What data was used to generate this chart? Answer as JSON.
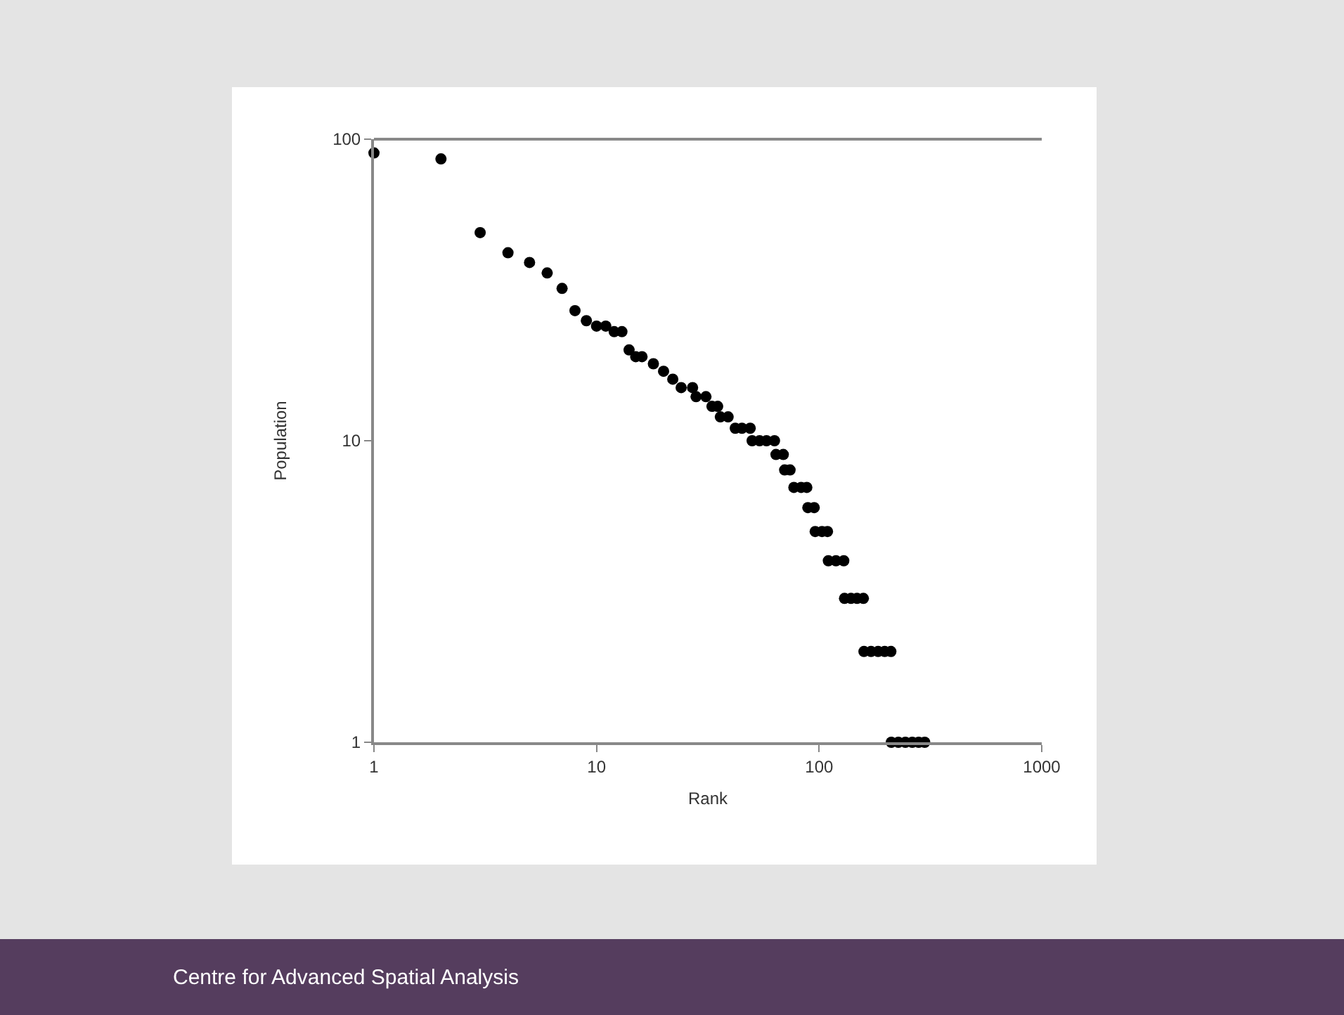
{
  "chart_data": {
    "type": "scatter",
    "xlabel": "Rank",
    "ylabel": "Population",
    "log": "xy",
    "grid": false,
    "marker": "circle",
    "xlim": [
      1,
      1000
    ],
    "xticks": [
      1,
      10,
      100,
      1000
    ],
    "ylim": [
      1,
      100
    ],
    "yticks": [
      1,
      10,
      100
    ],
    "annotations": [
      "Centre for Advanced Spatial Analysis"
    ],
    "series": [
      {
        "color": "#000000",
        "x": [
          1,
          2,
          3,
          4,
          5,
          6,
          7,
          8,
          9,
          10,
          11,
          12,
          13,
          14,
          15,
          16,
          18,
          20,
          22,
          24,
          27,
          28,
          31,
          33,
          35,
          36,
          39,
          42,
          45,
          49,
          50,
          54,
          58,
          63,
          64,
          69,
          70,
          74,
          77,
          83,
          88,
          89,
          95,
          96,
          103,
          109,
          110,
          119,
          129,
          130,
          139,
          148,
          158,
          159,
          171,
          184,
          197,
          210,
          211,
          227,
          244,
          262,
          280,
          298
        ],
        "values": [
          90,
          86,
          49,
          42,
          39,
          36,
          32,
          27,
          25,
          24,
          24,
          23,
          23,
          20,
          19,
          19,
          18,
          17,
          16,
          15,
          15,
          14,
          14,
          13,
          13,
          12,
          12,
          11,
          11,
          11,
          10,
          10,
          10,
          10,
          9,
          9,
          8,
          8,
          7,
          7,
          7,
          6,
          6,
          5,
          5,
          5,
          4,
          4,
          4,
          3,
          3,
          3,
          3,
          2,
          2,
          2,
          2,
          2,
          1,
          1,
          1,
          1,
          1,
          1
        ]
      }
    ]
  }
}
